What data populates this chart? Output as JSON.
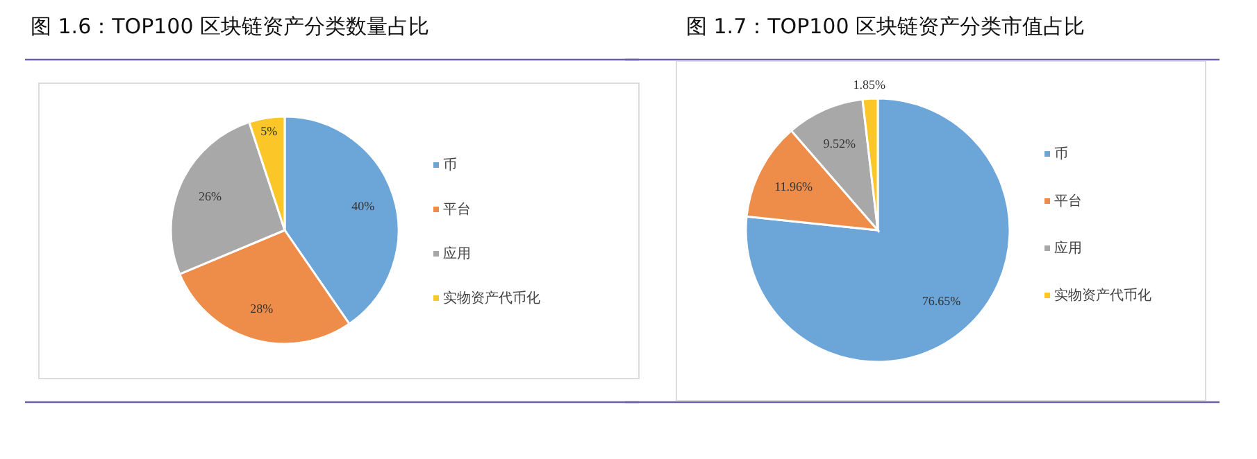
{
  "chart_data": [
    {
      "type": "pie",
      "title": "图 1.6：TOP100 区块链资产分类数量占比",
      "categories": [
        "币",
        "平台",
        "应用",
        "实物资产代币化"
      ],
      "values": [
        40,
        28,
        26,
        5
      ],
      "value_labels": [
        "40%",
        "28%",
        "26%",
        "5%"
      ],
      "colors": [
        "#6ca6d9",
        "#ee8c4a",
        "#a8a8a8",
        "#fbc627"
      ],
      "legend": "right"
    },
    {
      "type": "pie",
      "title": "图 1.7：TOP100 区块链资产分类市值占比",
      "categories": [
        "币",
        "平台",
        "应用",
        "实物资产代币化"
      ],
      "values": [
        76.65,
        11.96,
        9.52,
        1.85
      ],
      "value_labels": [
        "76.65%",
        "11.96%",
        "9.52%",
        "1.85%"
      ],
      "colors": [
        "#6ca6d9",
        "#ee8c4a",
        "#a8a8a8",
        "#fbc627"
      ],
      "legend": "right"
    }
  ]
}
